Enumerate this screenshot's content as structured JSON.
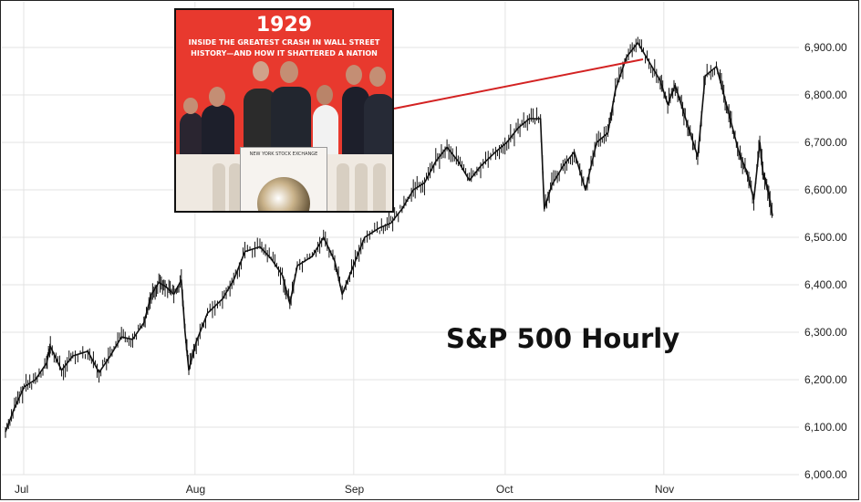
{
  "chart_data": {
    "type": "line",
    "title": "S&P 500 Hourly",
    "ylim": [
      6000,
      6940
    ],
    "yticks": [
      6000,
      6100,
      6200,
      6300,
      6400,
      6500,
      6600,
      6700,
      6800,
      6900
    ],
    "ytick_labels": [
      "6,000.00",
      "6,100.00",
      "6,200.00",
      "6,300.00",
      "6,400.00",
      "6,500.00",
      "6,600.00",
      "6,700.00",
      "6,800.00",
      "6,900.00"
    ],
    "xticks": [
      {
        "label": "Jul",
        "t": 0.0
      },
      {
        "label": "Aug",
        "t": 0.2289
      },
      {
        "label": "Sep",
        "t": 0.441
      },
      {
        "label": "Oct",
        "t": 0.6434
      },
      {
        "label": "Nov",
        "t": 0.8554
      }
    ],
    "x_note": "t is the fraction of the time span from Jul 1 to ~Nov 18",
    "grid": true,
    "y_axis_position": "right",
    "series": [
      {
        "values": [
          [
            0.0,
            6090
          ],
          [
            0.012,
            6140
          ],
          [
            0.025,
            6185
          ],
          [
            0.04,
            6200
          ],
          [
            0.055,
            6235
          ],
          [
            0.06,
            6270
          ],
          [
            0.075,
            6220
          ],
          [
            0.09,
            6250
          ],
          [
            0.11,
            6260
          ],
          [
            0.125,
            6215
          ],
          [
            0.14,
            6250
          ],
          [
            0.155,
            6290
          ],
          [
            0.17,
            6285
          ],
          [
            0.185,
            6320
          ],
          [
            0.195,
            6380
          ],
          [
            0.205,
            6405
          ],
          [
            0.215,
            6395
          ],
          [
            0.225,
            6380
          ],
          [
            0.235,
            6410
          ],
          [
            0.24,
            6300
          ],
          [
            0.245,
            6220
          ],
          [
            0.255,
            6280
          ],
          [
            0.27,
            6340
          ],
          [
            0.29,
            6370
          ],
          [
            0.305,
            6410
          ],
          [
            0.32,
            6470
          ],
          [
            0.34,
            6480
          ],
          [
            0.355,
            6455
          ],
          [
            0.37,
            6420
          ],
          [
            0.38,
            6360
          ],
          [
            0.39,
            6440
          ],
          [
            0.41,
            6460
          ],
          [
            0.425,
            6500
          ],
          [
            0.44,
            6450
          ],
          [
            0.45,
            6380
          ],
          [
            0.465,
            6440
          ],
          [
            0.48,
            6500
          ],
          [
            0.5,
            6520
          ],
          [
            0.515,
            6530
          ],
          [
            0.53,
            6560
          ],
          [
            0.545,
            6600
          ],
          [
            0.56,
            6615
          ],
          [
            0.575,
            6660
          ],
          [
            0.59,
            6690
          ],
          [
            0.605,
            6660
          ],
          [
            0.62,
            6620
          ],
          [
            0.635,
            6650
          ],
          [
            0.655,
            6680
          ],
          [
            0.67,
            6700
          ],
          [
            0.685,
            6730
          ],
          [
            0.7,
            6750
          ],
          [
            0.715,
            6750
          ],
          [
            0.72,
            6560
          ],
          [
            0.73,
            6610
          ],
          [
            0.745,
            6650
          ],
          [
            0.76,
            6680
          ],
          [
            0.775,
            6600
          ],
          [
            0.79,
            6700
          ],
          [
            0.805,
            6720
          ],
          [
            0.815,
            6810
          ],
          [
            0.83,
            6880
          ],
          [
            0.845,
            6910
          ],
          [
            0.86,
            6870
          ],
          [
            0.875,
            6830
          ],
          [
            0.885,
            6780
          ],
          [
            0.895,
            6820
          ],
          [
            0.905,
            6770
          ],
          [
            0.915,
            6720
          ],
          [
            0.925,
            6670
          ],
          [
            0.935,
            6840
          ],
          [
            0.95,
            6860
          ],
          [
            0.96,
            6800
          ],
          [
            0.97,
            6740
          ],
          [
            0.98,
            6680
          ],
          [
            0.99,
            6640
          ],
          [
            1.0,
            6580
          ],
          [
            1.008,
            6700
          ],
          [
            1.012,
            6640
          ],
          [
            1.02,
            6590
          ],
          [
            1.025,
            6545
          ]
        ]
      }
    ]
  },
  "inset": {
    "year": "1929",
    "subtitle": "INSIDE THE GREATEST CRASH IN WALL STREET HISTORY—AND HOW IT SHATTERED A NATION",
    "podium_label": "NEW YORK STOCK EXCHANGE"
  },
  "colors": {
    "line": "#111111",
    "grid": "#e3e3e3",
    "connector": "#d32222",
    "inset_bg": "#e8392e"
  }
}
